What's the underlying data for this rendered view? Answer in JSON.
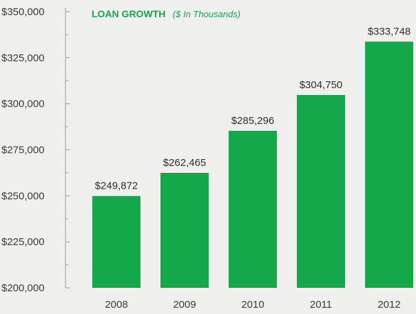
{
  "chart_data": {
    "type": "bar",
    "title": "LOAN GROWTH",
    "subtitle": "($ In Thousands)",
    "categories": [
      "2008",
      "2009",
      "2010",
      "2011",
      "2012"
    ],
    "values": [
      249872,
      262465,
      285296,
      304750,
      333748
    ],
    "data_labels": [
      "$249,872",
      "$262,465",
      "$285,296",
      "$304,750",
      "$333,748"
    ],
    "y_ticks": [
      200000,
      225000,
      250000,
      275000,
      300000,
      325000,
      350000
    ],
    "y_tick_labels": [
      "$200,000",
      "$225,000",
      "$250,000",
      "$275,000",
      "$300,000",
      "$325,000",
      "$350,000"
    ],
    "ylim": [
      200000,
      350000
    ],
    "grid": false,
    "xlabel": "",
    "ylabel": "",
    "colors": {
      "bar": "#14a84a",
      "title": "#18a24c",
      "axis": "#9a9a9a",
      "text": "#3a3a3a",
      "background": "#efefee"
    }
  }
}
